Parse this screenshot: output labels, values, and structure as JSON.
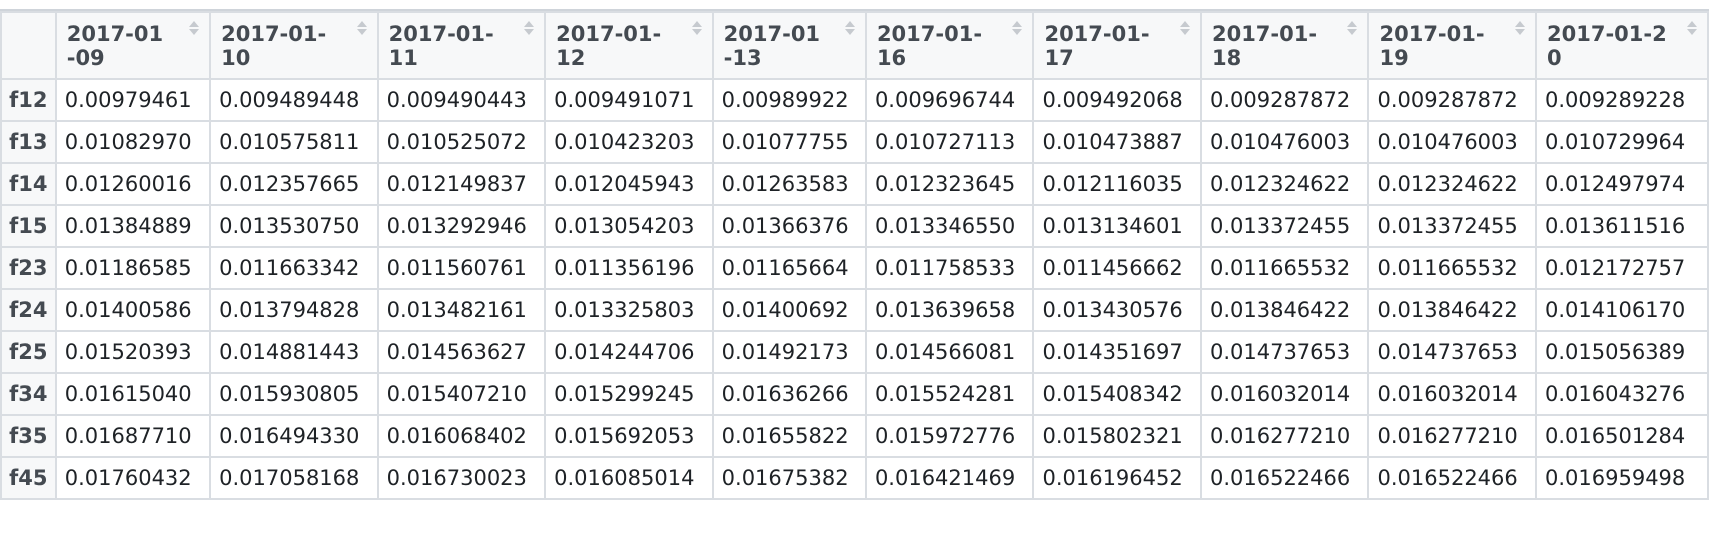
{
  "table": {
    "columns": [
      "2017-01-09",
      "2017-01-10",
      "2017-01-11",
      "2017-01-12",
      "2017-01-13",
      "2017-01-16",
      "2017-01-17",
      "2017-01-18",
      "2017-01-19",
      "2017-01-20"
    ],
    "rows": [
      {
        "label": "f12",
        "cells": [
          "0.00979461",
          "0.009489448",
          "0.009490443",
          "0.009491071",
          "0.00989922",
          "0.009696744",
          "0.009492068",
          "0.009287872",
          "0.009287872",
          "0.009289228"
        ]
      },
      {
        "label": "f13",
        "cells": [
          "0.01082970",
          "0.010575811",
          "0.010525072",
          "0.010423203",
          "0.01077755",
          "0.010727113",
          "0.010473887",
          "0.010476003",
          "0.010476003",
          "0.010729964"
        ]
      },
      {
        "label": "f14",
        "cells": [
          "0.01260016",
          "0.012357665",
          "0.012149837",
          "0.012045943",
          "0.01263583",
          "0.012323645",
          "0.012116035",
          "0.012324622",
          "0.012324622",
          "0.012497974"
        ]
      },
      {
        "label": "f15",
        "cells": [
          "0.01384889",
          "0.013530750",
          "0.013292946",
          "0.013054203",
          "0.01366376",
          "0.013346550",
          "0.013134601",
          "0.013372455",
          "0.013372455",
          "0.013611516"
        ]
      },
      {
        "label": "f23",
        "cells": [
          "0.01186585",
          "0.011663342",
          "0.011560761",
          "0.011356196",
          "0.01165664",
          "0.011758533",
          "0.011456662",
          "0.011665532",
          "0.011665532",
          "0.012172757"
        ]
      },
      {
        "label": "f24",
        "cells": [
          "0.01400586",
          "0.013794828",
          "0.013482161",
          "0.013325803",
          "0.01400692",
          "0.013639658",
          "0.013430576",
          "0.013846422",
          "0.013846422",
          "0.014106170"
        ]
      },
      {
        "label": "f25",
        "cells": [
          "0.01520393",
          "0.014881443",
          "0.014563627",
          "0.014244706",
          "0.01492173",
          "0.014566081",
          "0.014351697",
          "0.014737653",
          "0.014737653",
          "0.015056389"
        ]
      },
      {
        "label": "f34",
        "cells": [
          "0.01615040",
          "0.015930805",
          "0.015407210",
          "0.015299245",
          "0.01636266",
          "0.015524281",
          "0.015408342",
          "0.016032014",
          "0.016032014",
          "0.016043276"
        ]
      },
      {
        "label": "f35",
        "cells": [
          "0.01687710",
          "0.016494330",
          "0.016068402",
          "0.015692053",
          "0.01655822",
          "0.015972776",
          "0.015802321",
          "0.016277210",
          "0.016277210",
          "0.016501284"
        ]
      },
      {
        "label": "f45",
        "cells": [
          "0.01760432",
          "0.017058168",
          "0.016730023",
          "0.016085014",
          "0.01675382",
          "0.016421469",
          "0.016196452",
          "0.016522466",
          "0.016522466",
          "0.016959498"
        ]
      }
    ]
  },
  "icons": {
    "sort": "sort-icon"
  },
  "colors": {
    "header_bg": "#f7f8f9",
    "border": "#d9dde2",
    "text": "#1e2226",
    "header_text": "#444a51"
  }
}
